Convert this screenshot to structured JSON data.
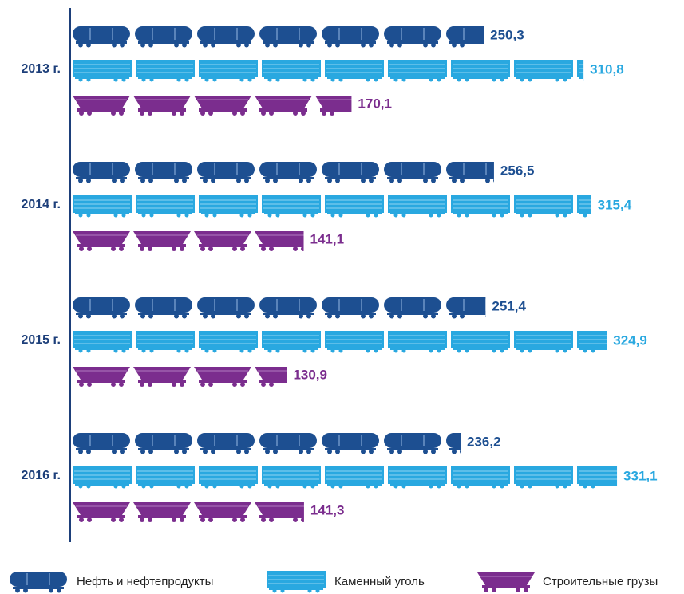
{
  "chart_data": {
    "type": "bar",
    "orientation": "horizontal",
    "categories": [
      "2013 г.",
      "2014 г.",
      "2015 г.",
      "2016 г."
    ],
    "series": [
      {
        "name": "Нефть и нефтепродукты",
        "color": "#1d4f91",
        "values": [
          250.3,
          256.5,
          251.4,
          236.2
        ],
        "value_labels": [
          "250,3",
          "256,5",
          "251,4",
          "236,2"
        ]
      },
      {
        "name": "Каменный уголь",
        "color": "#29a8e0",
        "values": [
          310.8,
          315.4,
          324.9,
          331.1
        ],
        "value_labels": [
          "310,8",
          "315,4",
          "324,9",
          "331,1"
        ]
      },
      {
        "name": "Строительные грузы",
        "color": "#7b2d8e",
        "values": [
          170.1,
          141.1,
          130.9,
          141.3
        ],
        "value_labels": [
          "170,1",
          "141,1",
          "130,9",
          "141,3"
        ]
      }
    ],
    "legend": "bottom"
  }
}
